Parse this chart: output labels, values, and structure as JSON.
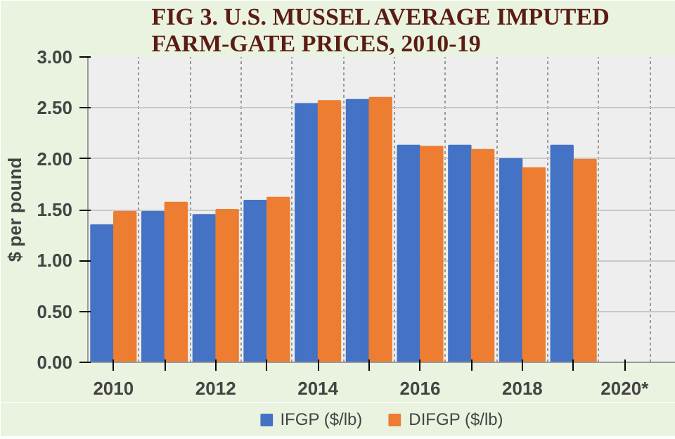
{
  "chart_data": {
    "type": "bar",
    "title": "FIG 3. U.S. MUSSEL AVERAGE IMPUTED FARM-GATE PRICES, 2010-19",
    "ylabel": "$ per pound",
    "categories": [
      "2010",
      null,
      "2012",
      null,
      "2014",
      null,
      "2016",
      null,
      "2018",
      null,
      "2020*"
    ],
    "series": [
      {
        "name": "IFGP ($/lb)",
        "color": "#4472c4",
        "values": [
          1.35,
          1.48,
          1.45,
          1.59,
          2.54,
          2.58,
          2.13,
          2.13,
          2.0,
          2.13,
          null
        ]
      },
      {
        "name": "DIFGP ($/lb)",
        "color": "#ed7d31",
        "values": [
          1.48,
          1.57,
          1.5,
          1.62,
          2.57,
          2.6,
          2.12,
          2.09,
          1.91,
          1.99,
          null
        ]
      }
    ],
    "ylim": [
      0,
      3
    ],
    "yticks": [
      {
        "value": 0,
        "label": "0.00"
      },
      {
        "value": 0.5,
        "label": "0.50"
      },
      {
        "value": 1,
        "label": "1.00"
      },
      {
        "value": 1.5,
        "label": "1.50"
      },
      {
        "value": 2,
        "label": "2.00"
      },
      {
        "value": 2.5,
        "label": "2.50"
      },
      {
        "value": 3,
        "label": "3.00"
      }
    ],
    "grid": true,
    "legend": "bottom"
  }
}
